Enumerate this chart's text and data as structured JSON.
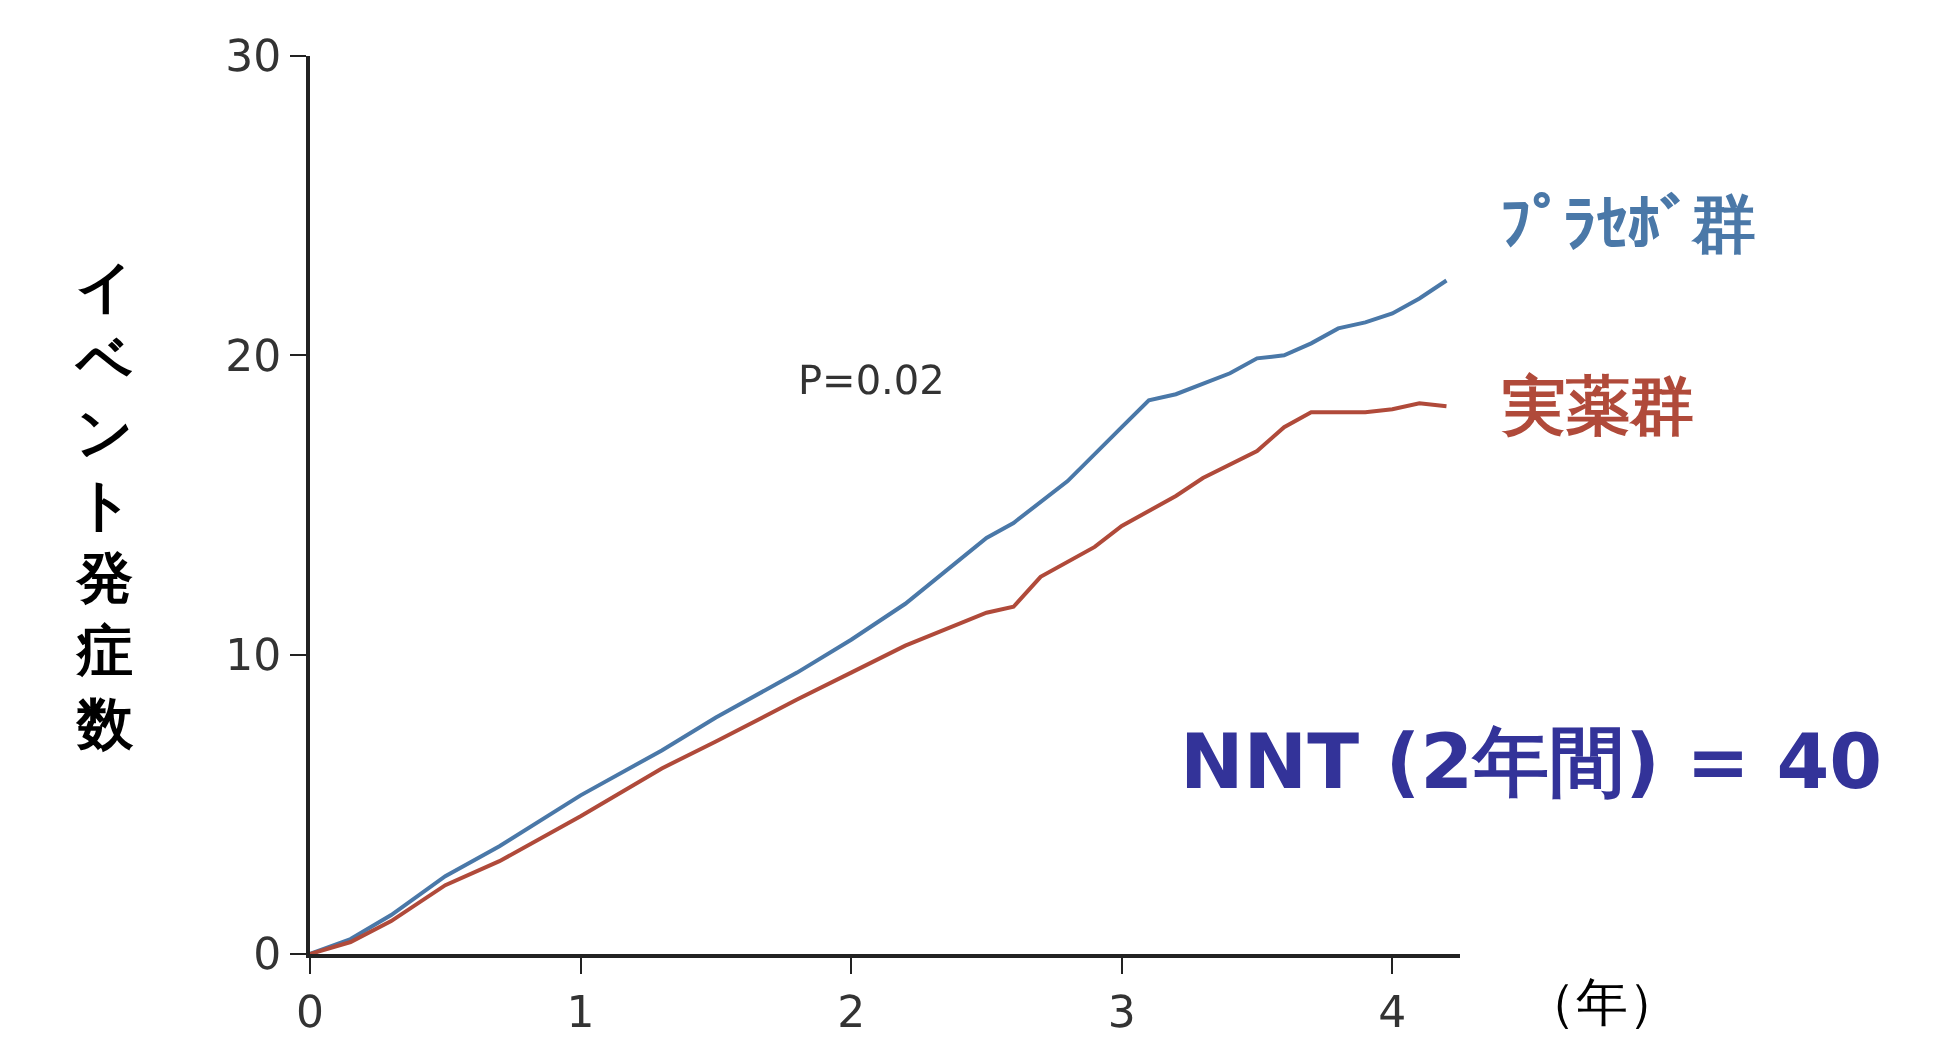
{
  "chart_data": {
    "type": "line",
    "xlabel": "（年）",
    "ylabel": "イベント発症数",
    "xlim": [
      0,
      4.25
    ],
    "ylim": [
      0,
      30
    ],
    "xticks": [
      0,
      1,
      2,
      3,
      4
    ],
    "yticks": [
      0,
      10,
      20,
      30
    ],
    "legend": false,
    "marker": "none",
    "line_style": "solid",
    "series": [
      {
        "name": "ﾌﾟﾗｾﾎﾞ群",
        "color": "#4a78a8",
        "x": [
          0,
          0.15,
          0.3,
          0.5,
          0.7,
          1.0,
          1.3,
          1.5,
          1.8,
          2.0,
          2.2,
          2.5,
          2.6,
          2.8,
          3.0,
          3.1,
          3.2,
          3.4,
          3.5,
          3.6,
          3.7,
          3.8,
          3.9,
          4.0,
          4.1,
          4.2
        ],
        "values": [
          0,
          0.5,
          1.3,
          2.6,
          3.6,
          5.3,
          6.8,
          7.9,
          9.4,
          10.5,
          11.7,
          13.9,
          14.4,
          15.8,
          17.6,
          18.5,
          18.7,
          19.4,
          19.9,
          20.0,
          20.4,
          20.9,
          21.1,
          21.4,
          21.9,
          22.5
        ]
      },
      {
        "name": "実薬群",
        "color": "#b04a3a",
        "x": [
          0,
          0.15,
          0.3,
          0.5,
          0.7,
          1.0,
          1.3,
          1.5,
          1.8,
          2.0,
          2.2,
          2.5,
          2.6,
          2.7,
          2.9,
          3.0,
          3.2,
          3.3,
          3.5,
          3.6,
          3.7,
          3.9,
          4.0,
          4.1,
          4.2
        ],
        "values": [
          0,
          0.4,
          1.1,
          2.3,
          3.1,
          4.6,
          6.2,
          7.1,
          8.5,
          9.4,
          10.3,
          11.4,
          11.6,
          12.6,
          13.6,
          14.3,
          15.3,
          15.9,
          16.8,
          17.6,
          18.1,
          18.1,
          18.2,
          18.4,
          18.3
        ]
      }
    ],
    "annotations": [
      "P=0.02",
      "NNT (2年間) = 40"
    ]
  }
}
